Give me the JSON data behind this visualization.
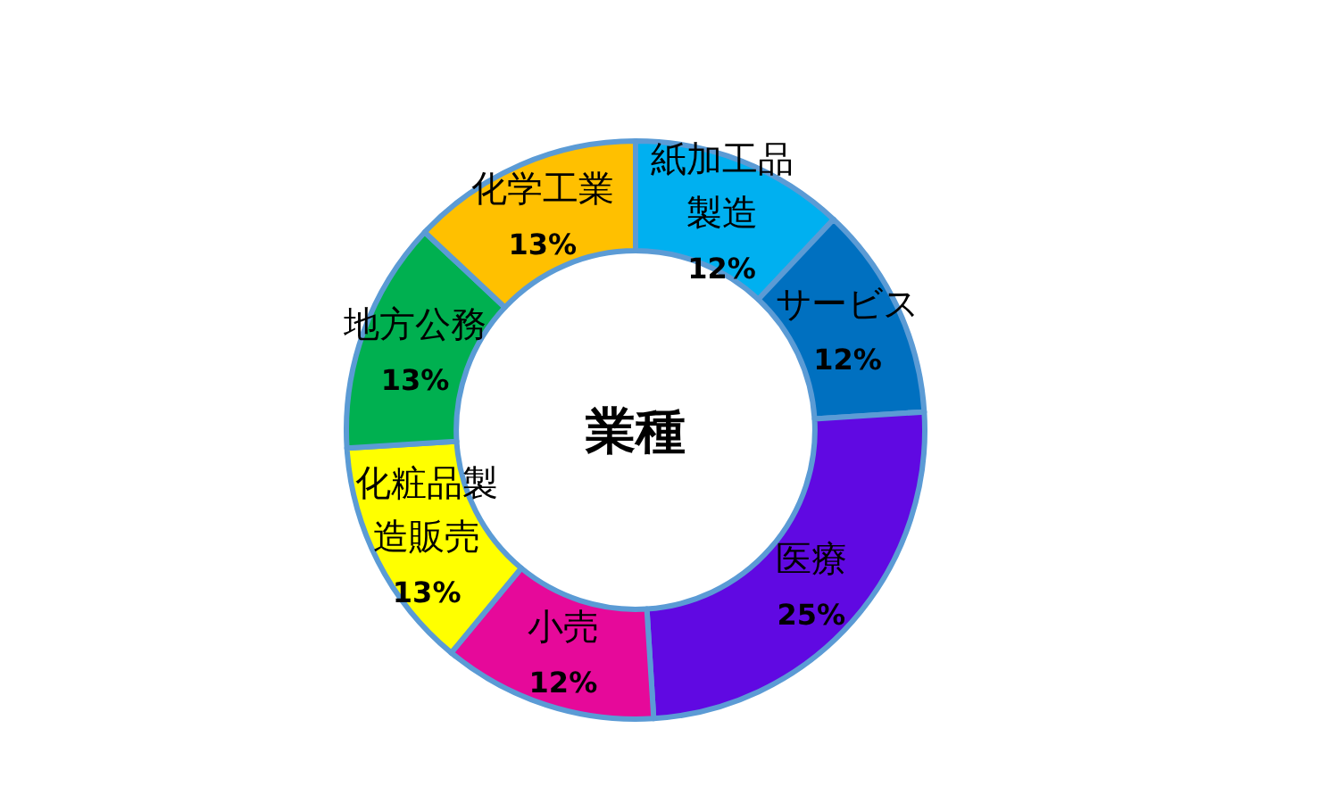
{
  "chart_data": {
    "type": "donut",
    "title": "業種",
    "categories": [
      "紙加工品製造",
      "サービス",
      "医療",
      "小売",
      "化粧品製造販売",
      "地方公務",
      "化学工業"
    ],
    "values": [
      12,
      12,
      25,
      12,
      13,
      13,
      13
    ],
    "value_labels": [
      "12%",
      "12%",
      "25%",
      "12%",
      "13%",
      "13%",
      "13%"
    ],
    "colors": [
      "#00b0f0",
      "#0070c0",
      "#6009e2",
      "#e6099a",
      "#ffff00",
      "#00b050",
      "#ffc000"
    ]
  }
}
